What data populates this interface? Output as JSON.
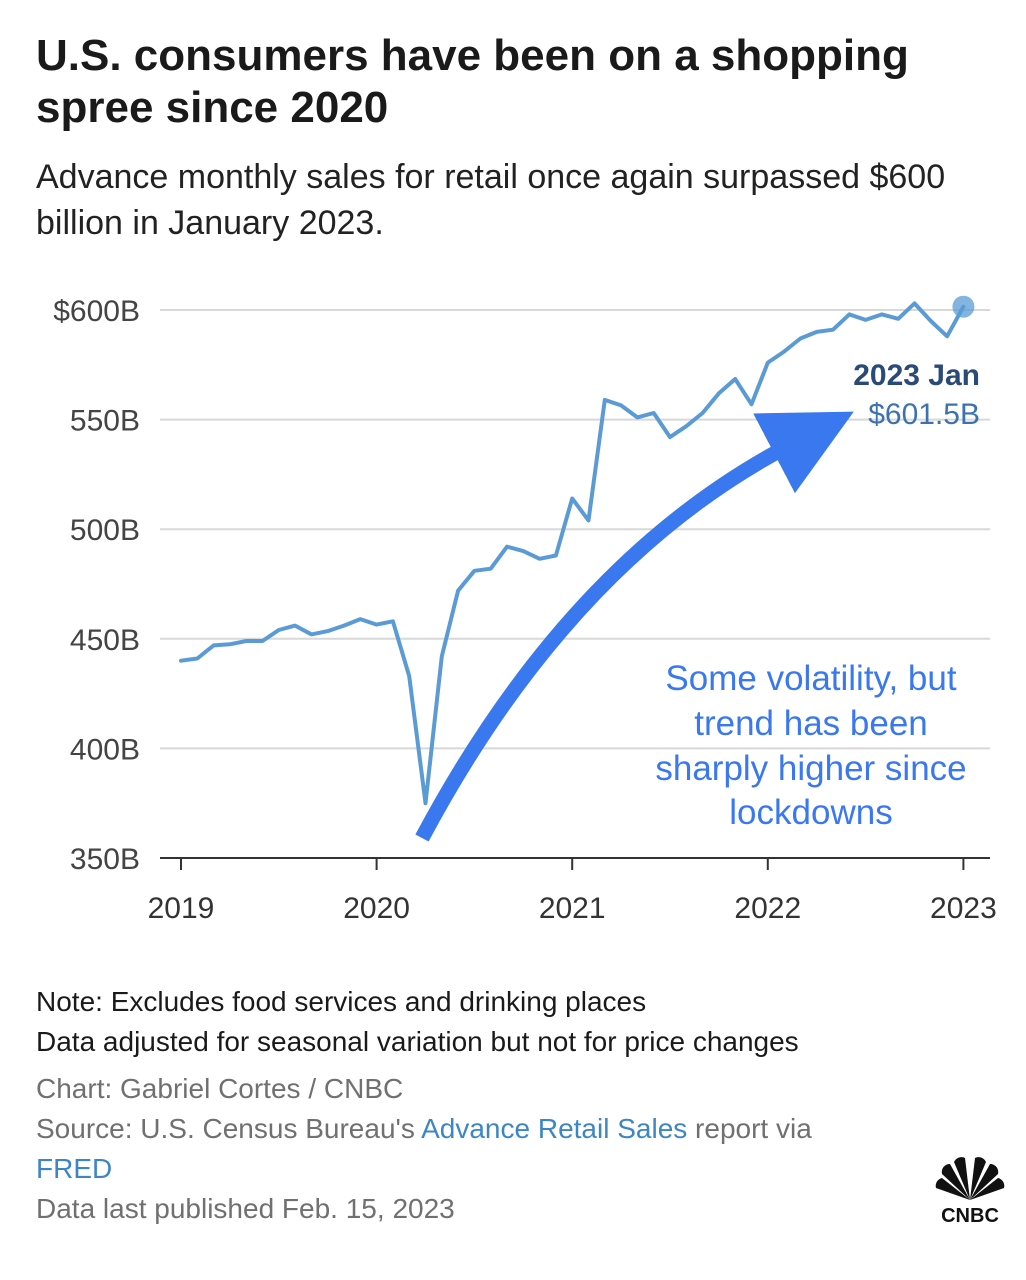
{
  "title": "U.S. consumers have been on a shopping spree since 2020",
  "subtitle": "Advance monthly sales for retail once again surpassed $600 billion in January 2023.",
  "colors": {
    "line": "#5b9bd5",
    "arrow": "#3a78f0",
    "annotation_text": "#3a78f0",
    "label_title": "#2a4a78",
    "label_value": "#3d72b0",
    "grid": "#d8d8d8",
    "link": "#3d86c6"
  },
  "chart_data": {
    "type": "line",
    "x_unit": "month",
    "ylim": [
      350,
      600
    ],
    "yticks": [
      350,
      400,
      450,
      500,
      550,
      600
    ],
    "ytick_labels": [
      "350B",
      "400B",
      "450B",
      "500B",
      "550B",
      "$600B"
    ],
    "xticks": [
      "2019-01",
      "2020-01",
      "2021-01",
      "2022-01",
      "2023-01"
    ],
    "xtick_labels": [
      "2019",
      "2020",
      "2021",
      "2022",
      "2023"
    ],
    "grid": "horizontal",
    "series": [
      {
        "x": [
          "2019-01",
          "2019-02",
          "2019-03",
          "2019-04",
          "2019-05",
          "2019-06",
          "2019-07",
          "2019-08",
          "2019-09",
          "2019-10",
          "2019-11",
          "2019-12",
          "2020-01",
          "2020-02",
          "2020-03",
          "2020-04",
          "2020-05",
          "2020-06",
          "2020-07",
          "2020-08",
          "2020-09",
          "2020-10",
          "2020-11",
          "2020-12",
          "2021-01",
          "2021-02",
          "2021-03",
          "2021-04",
          "2021-05",
          "2021-06",
          "2021-07",
          "2021-08",
          "2021-09",
          "2021-10",
          "2021-11",
          "2021-12",
          "2022-01",
          "2022-02",
          "2022-03",
          "2022-04",
          "2022-05",
          "2022-06",
          "2022-07",
          "2022-08",
          "2022-09",
          "2022-10",
          "2022-11",
          "2022-12",
          "2023-01"
        ],
        "values": [
          440,
          441,
          447,
          447.5,
          449,
          449,
          454,
          456,
          452,
          453.5,
          456,
          459,
          456.5,
          458,
          433,
          375,
          442,
          472,
          481,
          482,
          492,
          490,
          486.5,
          488,
          514,
          504,
          559,
          556.5,
          551,
          553,
          542,
          547,
          553,
          562,
          568.5,
          557,
          576,
          581,
          587,
          590,
          591,
          598,
          595.5,
          598,
          596,
          603,
          595,
          588,
          601.5
        ]
      }
    ],
    "highlight": {
      "x": "2023-01",
      "value": 601.5,
      "label_title": "2023 Jan",
      "label_value": "$601.5B"
    },
    "annotation": {
      "lines": [
        "Some volatility, but",
        "trend has been",
        "sharply higher since",
        "lockdowns"
      ]
    }
  },
  "footer": {
    "note_1": "Note: Excludes food services and drinking places",
    "note_2": "Data adjusted for seasonal variation but not for price changes",
    "chart_credit": "Chart: Gabriel Cortes / CNBC",
    "source_prefix": "Source: U.S. Census Bureau's ",
    "source_link_1": "Advance Retail Sales",
    "source_middle": " report via",
    "source_link_2": "FRED",
    "published": "Data last published Feb. 15, 2023"
  },
  "logo": {
    "icon": "nbc-peacock-icon",
    "text": "CNBC"
  }
}
